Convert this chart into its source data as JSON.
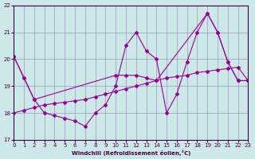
{
  "xlabel": "Windchill (Refroidissement éolien,°C)",
  "xlim": [
    0,
    23
  ],
  "ylim": [
    17,
    22
  ],
  "yticks": [
    17,
    18,
    19,
    20,
    21,
    22
  ],
  "xticks": [
    0,
    1,
    2,
    3,
    4,
    5,
    6,
    7,
    8,
    9,
    10,
    11,
    12,
    13,
    14,
    15,
    16,
    17,
    18,
    19,
    20,
    21,
    22,
    23
  ],
  "background_color": "#cce8e8",
  "grid_color": "#9999bb",
  "line_color": "#990099",
  "series": [
    {
      "x": [
        0,
        1,
        2,
        3,
        4,
        5,
        6,
        7,
        8,
        9,
        10,
        11,
        12,
        13,
        14,
        15,
        16,
        17,
        18,
        19,
        20,
        21,
        22,
        23
      ],
      "y": [
        18.0,
        18.1,
        18.2,
        18.3,
        18.35,
        18.4,
        18.45,
        18.5,
        18.6,
        18.7,
        18.8,
        18.9,
        19.0,
        19.1,
        19.2,
        19.3,
        19.35,
        19.4,
        19.5,
        19.55,
        19.6,
        19.65,
        19.7,
        19.2
      ]
    },
    {
      "x": [
        0,
        1,
        2,
        3,
        4,
        5,
        6,
        7,
        8,
        9,
        10,
        11,
        12,
        13,
        14,
        15,
        16,
        17,
        18,
        19,
        20,
        21,
        22,
        23
      ],
      "y": [
        20.1,
        19.3,
        18.5,
        18.0,
        17.9,
        17.8,
        17.7,
        17.5,
        18.0,
        18.3,
        19.0,
        20.5,
        21.0,
        20.3,
        20.0,
        18.0,
        18.7,
        19.9,
        21.0,
        21.7,
        21.0,
        19.9,
        19.2,
        19.2
      ]
    },
    {
      "x": [
        0,
        1,
        2,
        10,
        11,
        12,
        13,
        14,
        19,
        20,
        21,
        22,
        23
      ],
      "y": [
        20.1,
        19.3,
        18.5,
        19.4,
        19.4,
        19.4,
        19.3,
        19.2,
        21.7,
        21.0,
        19.9,
        19.2,
        19.2
      ]
    }
  ]
}
